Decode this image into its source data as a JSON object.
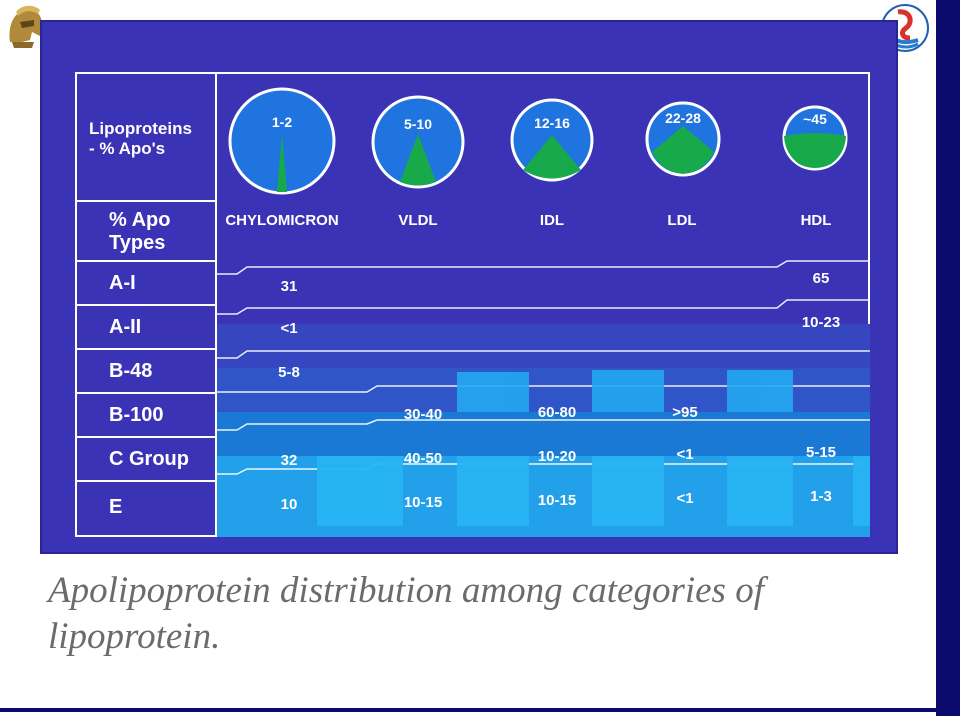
{
  "header": {
    "row_label_line1": "Lipoproteins",
    "row_label_line2": "- % Apo's"
  },
  "types_label": {
    "line1": "% Apo",
    "line2": "Types"
  },
  "classes": [
    {
      "name": "CHYLOMICRON",
      "density_range": "1-2"
    },
    {
      "name": "VLDL",
      "density_range": "5-10"
    },
    {
      "name": "IDL",
      "density_range": "12-16"
    },
    {
      "name": "LDL",
      "density_range": "22-28"
    },
    {
      "name": "HDL",
      "density_range": "~45"
    }
  ],
  "rows": [
    {
      "apo": "A-I",
      "values": [
        "31",
        "",
        "",
        "",
        "65"
      ]
    },
    {
      "apo": "A-II",
      "values": [
        "<1",
        "",
        "",
        "",
        "10-23"
      ]
    },
    {
      "apo": "B-48",
      "values": [
        "5-8",
        "",
        "",
        "",
        ""
      ]
    },
    {
      "apo": "B-100",
      "values": [
        "",
        "30-40",
        "60-80",
        ">95",
        ""
      ]
    },
    {
      "apo": "C Group",
      "values": [
        "32",
        "40-50",
        "10-20",
        "<1",
        "5-15"
      ]
    },
    {
      "apo": "E",
      "values": [
        "10",
        "10-15",
        "10-15",
        "<1",
        "1-3"
      ]
    }
  ],
  "caption": {
    "line1": "Apolipoprotein distribution among categories of",
    "line2": "lipoprotein."
  },
  "colors": {
    "background": "#3b33b5",
    "circle": "#1f74e0",
    "green": "#18a94a",
    "row_c": "#1b79d6",
    "row_e": "#22a0ea",
    "right_bar": "#0b0b6e"
  }
}
